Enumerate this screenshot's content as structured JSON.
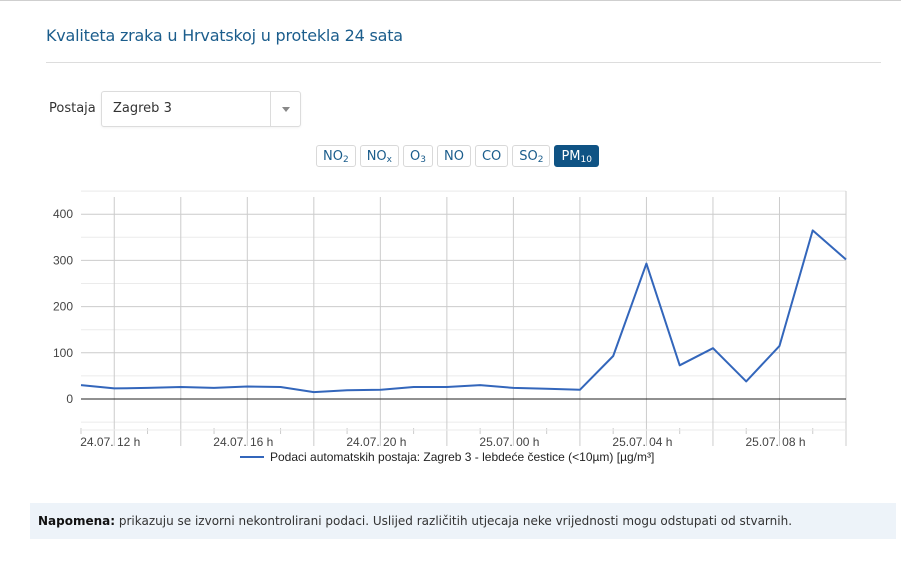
{
  "header": {
    "title": "Kvaliteta zraka u Hrvatskoj u protekla 24 sata"
  },
  "station": {
    "label": "Postaja",
    "selected": "Zagreb 3"
  },
  "pollutants": [
    {
      "base": "NO",
      "sub": "2",
      "active": false
    },
    {
      "base": "NO",
      "sub": "x",
      "active": false
    },
    {
      "base": "O",
      "sub": "3",
      "active": false
    },
    {
      "base": "NO",
      "sub": "",
      "active": false
    },
    {
      "base": "CO",
      "sub": "",
      "active": false
    },
    {
      "base": "SO",
      "sub": "2",
      "active": false
    },
    {
      "base": "PM",
      "sub": "10",
      "active": true
    }
  ],
  "colors": {
    "accent": "#0f5384",
    "title": "#1b5d8c",
    "series": "#3366bb",
    "note_bg": "#edf3f9"
  },
  "legend": {
    "label": "Podaci automatskih postaja: Zagreb 3 - lebdeće čestice (<10µm) [µg/m³]"
  },
  "note": {
    "bold": "Napomena:",
    "text": " prikazuju se izvorni nekontrolirani podaci. Uslijed različitih utjecaja neke vrijednosti mogu odstupati od stvarnih."
  },
  "chart_data": {
    "type": "line",
    "title": "",
    "xlabel": "",
    "ylabel": "",
    "ylim": [
      -60,
      440
    ],
    "yticks": [
      0,
      100,
      200,
      300,
      400
    ],
    "xtick_labels": [
      "24.07. 12 h",
      "24.07. 16 h",
      "24.07. 20 h",
      "25.07. 00 h",
      "25.07. 04 h",
      "25.07. 08 h"
    ],
    "x": [
      "24.07. 11 h",
      "24.07. 12 h",
      "24.07. 13 h",
      "24.07. 14 h",
      "24.07. 15 h",
      "24.07. 16 h",
      "24.07. 17 h",
      "24.07. 18 h",
      "24.07. 19 h",
      "24.07. 20 h",
      "24.07. 21 h",
      "24.07. 22 h",
      "24.07. 23 h",
      "25.07. 00 h",
      "25.07. 01 h",
      "25.07. 02 h",
      "25.07. 03 h",
      "25.07. 04 h",
      "25.07. 05 h",
      "25.07. 06 h",
      "25.07. 07 h",
      "25.07. 08 h",
      "25.07. 09 h",
      "25.07. 10 h"
    ],
    "series": [
      {
        "name": "Podaci automatskih postaja: Zagreb 3 - lebdeće čestice (<10µm) [µg/m³]",
        "values": [
          30,
          23,
          24,
          26,
          24,
          27,
          26,
          15,
          19,
          20,
          26,
          26,
          30,
          24,
          22,
          20,
          93,
          293,
          73,
          110,
          38,
          115,
          365,
          302
        ]
      }
    ],
    "grid": true,
    "legend_position": "bottom"
  }
}
